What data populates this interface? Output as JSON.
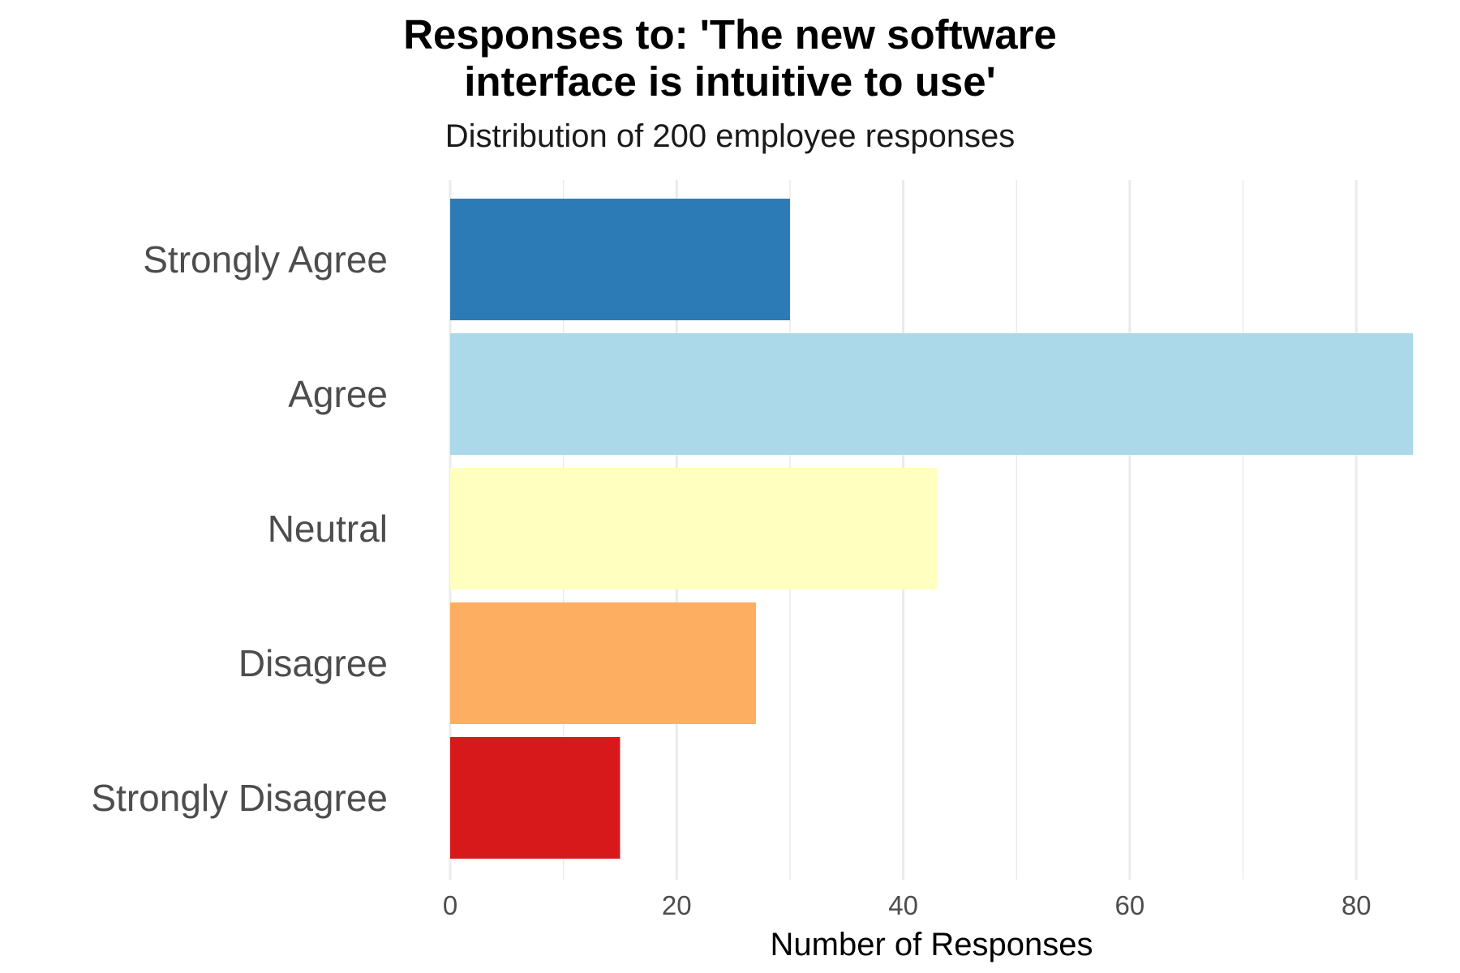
{
  "chart_data": {
    "type": "bar",
    "orientation": "horizontal",
    "title_lines": [
      "Responses to: 'The new software",
      "interface is intuitive to use'"
    ],
    "subtitle": "Distribution of 200 employee responses",
    "xlabel": "Number of Responses",
    "ylabel": "",
    "categories": [
      "Strongly Agree",
      "Agree",
      "Neutral",
      "Disagree",
      "Strongly Disagree"
    ],
    "values": [
      30,
      85,
      43,
      27,
      15
    ],
    "colors": [
      "#2c7bb6",
      "#abd9e9",
      "#ffffbf",
      "#fdae61",
      "#d7191c"
    ],
    "xlim": [
      0,
      85
    ],
    "xticks": [
      0,
      20,
      40,
      60,
      80
    ],
    "grid": true,
    "legend": "none"
  }
}
